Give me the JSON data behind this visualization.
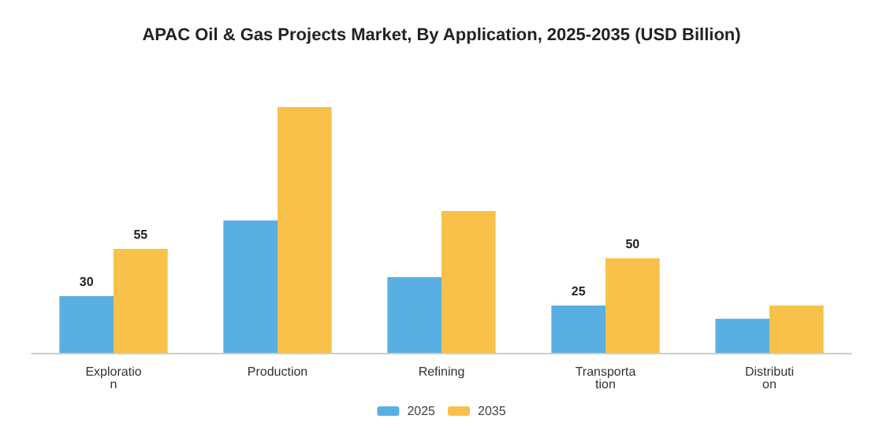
{
  "chart_data": {
    "type": "bar",
    "title": "APAC Oil & Gas Projects Market, By Application, 2025-2035 (USD Billion)",
    "categories": [
      "Exploratio\nn",
      "Production",
      "Refining",
      "Transporta\ntion",
      "Distributi\non"
    ],
    "series": [
      {
        "name": "2025",
        "color": "#5aafe2",
        "values": [
          30,
          70,
          40,
          25,
          18
        ],
        "value_labels": [
          "30",
          null,
          null,
          "25",
          null
        ]
      },
      {
        "name": "2035",
        "color": "#f7c14a",
        "values": [
          55,
          130,
          75,
          50,
          25
        ],
        "value_labels": [
          "55",
          null,
          null,
          "50",
          null
        ]
      }
    ],
    "legend": "bottom"
  }
}
